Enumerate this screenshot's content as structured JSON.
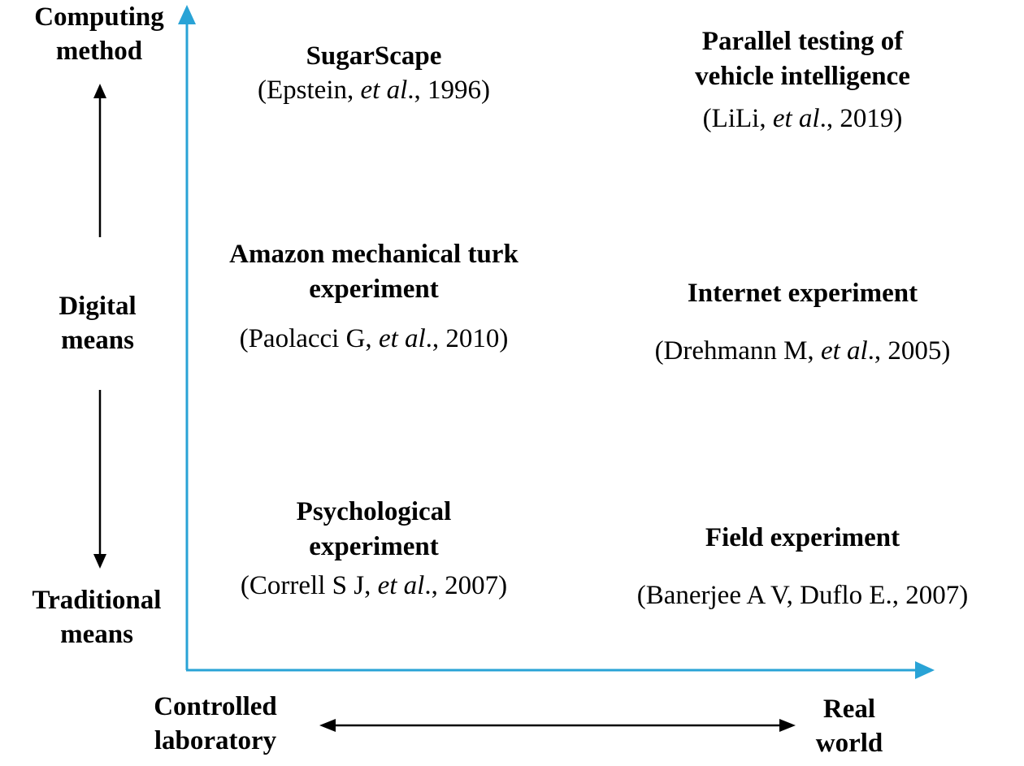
{
  "y_axis": {
    "title": {
      "line1": "Computing",
      "line2": "method"
    },
    "middle": {
      "line1": "Digital",
      "line2": "means"
    },
    "bottom": {
      "line1": "Traditional",
      "line2": "means"
    }
  },
  "x_axis": {
    "left": {
      "line1": "Controlled",
      "line2": "laboratory"
    },
    "right": {
      "line1": "Real",
      "line2": "world"
    }
  },
  "cells": {
    "computing_lab": {
      "title": "SugarScape",
      "citation": {
        "pre": "(Epstein, ",
        "italic": "et al",
        "post": "., 1996)"
      }
    },
    "computing_real": {
      "title_line1": "Parallel testing of",
      "title_line2": "vehicle intelligence",
      "citation": {
        "pre": "(LiLi, ",
        "italic": "et al",
        "post": "., 2019)"
      }
    },
    "digital_lab": {
      "title_line1": "Amazon mechanical turk",
      "title_line2": "experiment",
      "citation": {
        "pre": "(Paolacci G, ",
        "italic": "et al",
        "post": "., 2010)"
      }
    },
    "digital_real": {
      "title": "Internet experiment",
      "citation": {
        "pre": "(Drehmann M, ",
        "italic": "et al",
        "post": "., 2005)"
      }
    },
    "traditional_lab": {
      "title_line1": "Psychological",
      "title_line2": "experiment",
      "citation": {
        "pre": "(Correll S J, ",
        "italic": "et al",
        "post": "., 2007)"
      }
    },
    "traditional_real": {
      "title": "Field experiment",
      "citation": {
        "text": "(Banerjee A V, Duflo E., 2007)"
      }
    }
  },
  "colors": {
    "axis": "#29a3d6",
    "text": "#000000",
    "arrow": "#000000"
  }
}
